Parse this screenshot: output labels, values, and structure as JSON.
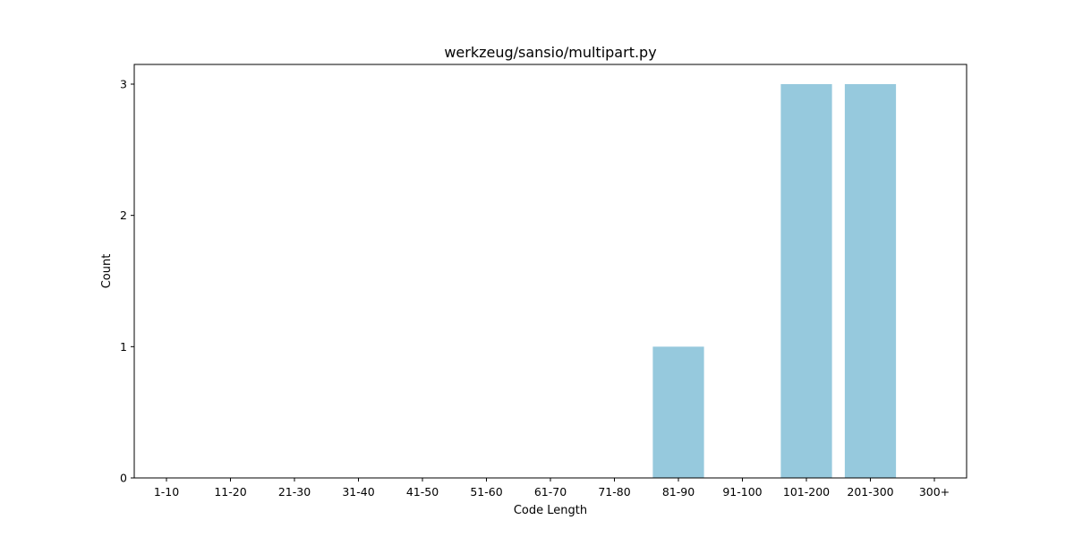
{
  "chart_data": {
    "type": "bar",
    "title": "werkzeug/sansio/multipart.py",
    "xlabel": "Code Length",
    "ylabel": "Count",
    "categories": [
      "1-10",
      "11-20",
      "21-30",
      "31-40",
      "41-50",
      "51-60",
      "61-70",
      "71-80",
      "81-90",
      "91-100",
      "101-200",
      "201-300",
      "300+"
    ],
    "values": [
      0,
      0,
      0,
      0,
      0,
      0,
      0,
      0,
      1,
      0,
      3,
      3,
      0
    ],
    "ylim": [
      0,
      3.15
    ],
    "yticks": [
      0,
      1,
      2,
      3
    ],
    "bar_color": "#96c9dd",
    "grid": false,
    "legend": "none"
  }
}
